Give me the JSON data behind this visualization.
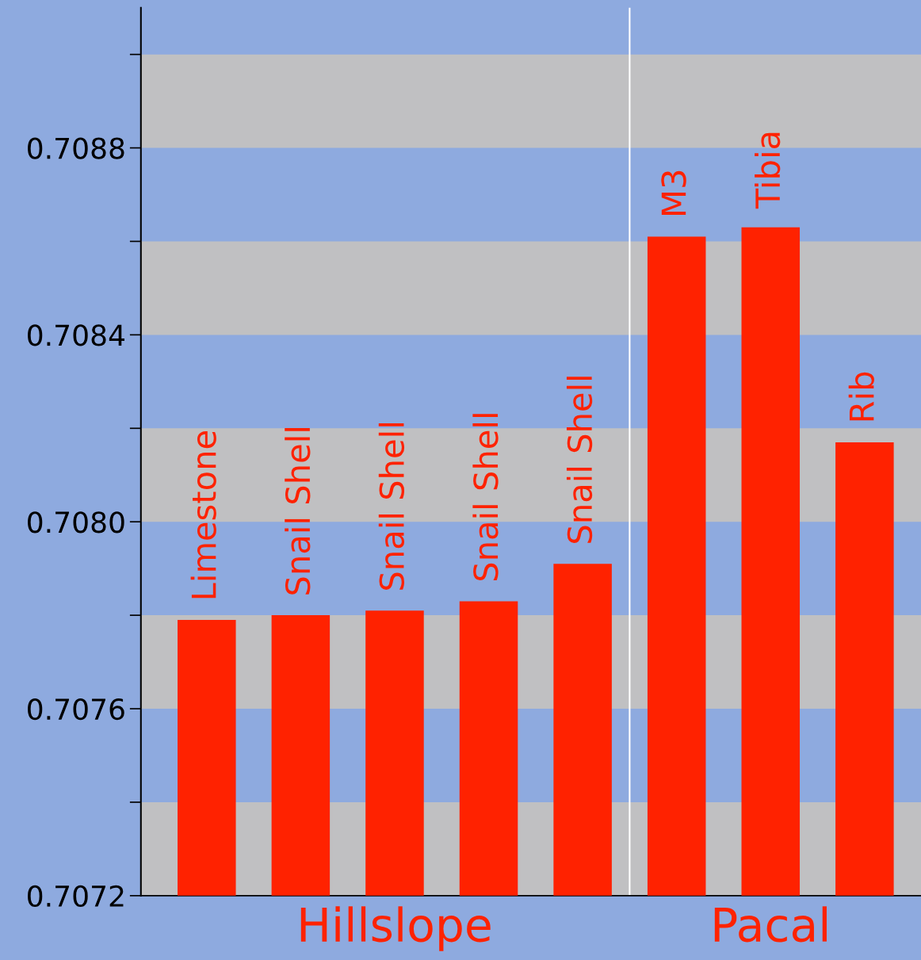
{
  "chart_data": {
    "type": "bar",
    "categories": [
      "Limestone",
      "Snail Shell",
      "Snail Shell",
      "Snail Shell",
      "Snail Shell",
      "M3",
      "Tibia",
      "Rib"
    ],
    "values": [
      0.70779,
      0.7078,
      0.70781,
      0.70783,
      0.70791,
      0.70861,
      0.70863,
      0.70817
    ],
    "color": "#ff2200",
    "ylim": [
      0.7072,
      0.7091
    ],
    "yticks": [
      0.7072,
      {
        "value": 0.7074,
        "label": null
      },
      0.7076,
      {
        "value": 0.7078,
        "label": null
      },
      {
        "value": 0.708,
        "label": "0.7080"
      },
      {
        "value": 0.7082,
        "label": null
      },
      0.7084,
      {
        "value": 0.7086,
        "label": null
      },
      0.7088,
      {
        "value": 0.709,
        "label": null
      }
    ],
    "bands": [
      {
        "axis": "y",
        "from": 0.7072,
        "to": 0.7074,
        "color": "#c0c0c2"
      },
      {
        "axis": "y",
        "from": 0.7076,
        "to": 0.7078,
        "color": "#c0c0c2"
      },
      {
        "axis": "y",
        "from": 0.708,
        "to": 0.7082,
        "color": "#c0c0c2"
      },
      {
        "axis": "y",
        "from": 0.7084,
        "to": 0.7086,
        "color": "#c0c0c2"
      },
      {
        "axis": "y",
        "from": 0.7088,
        "to": 0.709,
        "color": "#c0c0c2"
      }
    ],
    "annotations": [
      "Hillslope",
      "Pacal"
    ],
    "grid": false,
    "legend": false
  }
}
